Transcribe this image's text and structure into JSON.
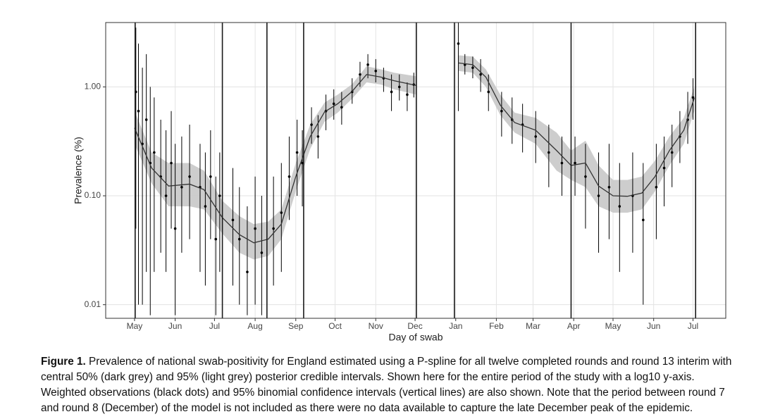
{
  "chart_data": {
    "type": "line",
    "y_label": "Prevalence (%)",
    "x_label": "Day of swab",
    "log_y": true,
    "grid": true,
    "xlim": [
      -22,
      451
    ],
    "ylim": [
      0.0075,
      3.9
    ],
    "xticks": [
      {
        "value": 0,
        "label": "May"
      },
      {
        "value": 31,
        "label": "Jun"
      },
      {
        "value": 61,
        "label": "Jul"
      },
      {
        "value": 92,
        "label": "Aug"
      },
      {
        "value": 123,
        "label": "Sep"
      },
      {
        "value": 153,
        "label": "Oct"
      },
      {
        "value": 184,
        "label": "Nov"
      },
      {
        "value": 214,
        "label": "Dec"
      },
      {
        "value": 245,
        "label": "Jan"
      },
      {
        "value": 276,
        "label": "Feb"
      },
      {
        "value": 304,
        "label": "Mar"
      },
      {
        "value": 335,
        "label": "Apr"
      },
      {
        "value": 365,
        "label": "May"
      },
      {
        "value": 396,
        "label": "Jun"
      },
      {
        "value": 426,
        "label": "Jul"
      }
    ],
    "yticks": [
      0.01,
      {
        "value": 0.1,
        "label": "0.10"
      },
      {
        "value": 1,
        "label": "1.00"
      }
    ],
    "round_boundaries": [
      0.5,
      67,
      101,
      129,
      215,
      244,
      333,
      428
    ],
    "boundary_color": "#1a1a1a",
    "line": {
      "color": "#333333",
      "x": [
        0,
        13,
        26,
        42,
        53,
        67,
        80,
        91,
        102,
        112,
        123,
        134,
        145,
        155,
        166,
        177,
        188,
        198,
        215,
        230,
        247,
        258,
        268,
        279,
        290,
        306,
        322,
        333,
        344,
        354,
        365,
        376,
        387,
        397,
        408,
        419,
        427
      ],
      "values": [
        0.42,
        0.18,
        0.123,
        0.128,
        0.114,
        0.063,
        0.044,
        0.037,
        0.04,
        0.055,
        0.15,
        0.35,
        0.59,
        0.7,
        0.91,
        1.3,
        1.23,
        1.14,
        1.03,
        null,
        1.66,
        1.6,
        1.23,
        0.68,
        0.47,
        0.4,
        0.26,
        0.19,
        0.2,
        0.123,
        0.1,
        0.099,
        0.106,
        0.15,
        0.26,
        0.4,
        0.79
      ]
    },
    "band": {
      "color": "#c8c8c8",
      "lower": [
        0.3,
        0.13,
        0.08,
        0.08,
        0.075,
        0.045,
        0.03,
        0.026,
        0.028,
        0.04,
        0.11,
        0.27,
        0.48,
        0.58,
        0.78,
        1.1,
        1.05,
        0.95,
        0.85,
        null,
        1.4,
        1.35,
        1.0,
        0.55,
        0.38,
        0.3,
        0.17,
        0.14,
        0.12,
        0.08,
        0.07,
        0.07,
        0.075,
        0.11,
        0.19,
        0.3,
        0.6
      ],
      "upper": [
        0.6,
        0.25,
        0.2,
        0.2,
        0.17,
        0.09,
        0.065,
        0.055,
        0.058,
        0.075,
        0.2,
        0.45,
        0.72,
        0.85,
        1.06,
        1.55,
        1.45,
        1.35,
        1.25,
        null,
        1.95,
        1.9,
        1.45,
        0.85,
        0.58,
        0.52,
        0.38,
        0.26,
        0.32,
        0.19,
        0.14,
        0.14,
        0.15,
        0.21,
        0.35,
        0.52,
        1.0
      ]
    },
    "observations": {
      "color": "#000000",
      "x": [
        1,
        3,
        6,
        9,
        12,
        15,
        20,
        24,
        28,
        31,
        36,
        42,
        50,
        54,
        58,
        62,
        65,
        75,
        80,
        86,
        92,
        97,
        106,
        112,
        118,
        124,
        128,
        135,
        140,
        146,
        152,
        158,
        166,
        172,
        178,
        184,
        190,
        196,
        202,
        208,
        213,
        247,
        252,
        258,
        264,
        270,
        280,
        288,
        296,
        306,
        316,
        326,
        336,
        344,
        354,
        362,
        370,
        380,
        388,
        398,
        404,
        410,
        416,
        422,
        426
      ],
      "values": [
        0.9,
        0.6,
        0.3,
        0.5,
        0.2,
        0.25,
        0.15,
        0.1,
        0.2,
        0.05,
        0.12,
        0.15,
        0.12,
        0.08,
        0.15,
        0.04,
        0.1,
        0.06,
        0.04,
        0.02,
        0.05,
        0.03,
        0.05,
        0.07,
        0.15,
        0.25,
        0.2,
        0.45,
        0.35,
        0.6,
        0.7,
        0.65,
        0.9,
        1.3,
        1.6,
        1.4,
        1.2,
        0.9,
        1.0,
        0.85,
        1.05,
        2.5,
        1.6,
        1.5,
        1.3,
        0.9,
        0.6,
        0.5,
        0.45,
        0.35,
        0.25,
        0.2,
        0.2,
        0.15,
        0.1,
        0.12,
        0.08,
        0.1,
        0.06,
        0.12,
        0.18,
        0.25,
        0.35,
        0.5,
        0.8
      ],
      "lower": [
        0.05,
        0.01,
        0.01,
        0.02,
        0.008,
        0.02,
        0.03,
        0.02,
        0.05,
        0.008,
        0.03,
        0.04,
        0.02,
        0.015,
        0.04,
        0.008,
        0.02,
        0.015,
        0.01,
        0.008,
        0.01,
        0.008,
        0.015,
        0.02,
        0.06,
        0.1,
        0.08,
        0.3,
        0.22,
        0.4,
        0.5,
        0.45,
        0.7,
        1.0,
        1.2,
        1.1,
        0.9,
        0.6,
        0.75,
        0.6,
        0.8,
        0.6,
        1.3,
        1.2,
        0.9,
        0.6,
        0.35,
        0.3,
        0.25,
        0.2,
        0.12,
        0.1,
        0.1,
        0.05,
        0.03,
        0.04,
        0.02,
        0.03,
        0.01,
        0.04,
        0.08,
        0.12,
        0.2,
        0.3,
        0.5
      ],
      "upper": [
        3.5,
        2.5,
        1.5,
        2,
        1,
        0.8,
        0.5,
        0.4,
        0.6,
        0.3,
        0.35,
        0.45,
        0.3,
        0.25,
        0.4,
        0.15,
        0.25,
        0.18,
        0.12,
        0.08,
        0.15,
        0.1,
        0.15,
        0.2,
        0.35,
        0.5,
        0.4,
        0.65,
        0.55,
        0.85,
        0.95,
        0.9,
        1.2,
        1.7,
        2.0,
        1.8,
        1.5,
        1.3,
        1.3,
        1.1,
        1.35,
        3.9,
        2.0,
        1.9,
        1.8,
        1.3,
        0.9,
        0.8,
        0.7,
        0.6,
        0.45,
        0.35,
        0.35,
        0.3,
        0.25,
        0.3,
        0.2,
        0.25,
        0.2,
        0.3,
        0.35,
        0.45,
        0.6,
        0.9,
        1.2
      ]
    }
  },
  "caption": {
    "label": "Figure 1.",
    "text": "Prevalence of national swab-positivity for England estimated using a P-spline for all twelve completed rounds and round 13 interim with central 50% (dark grey) and 95% (light grey) posterior credible intervals. Shown here for the entire period of the study with a log10 y-axis. Weighted observations (black dots) and 95% binomial confidence intervals (vertical lines) are also shown. Note that the period between round 7 and round 8 (December) of the model is not included as there were no data available to capture the late December peak of the epidemic."
  }
}
